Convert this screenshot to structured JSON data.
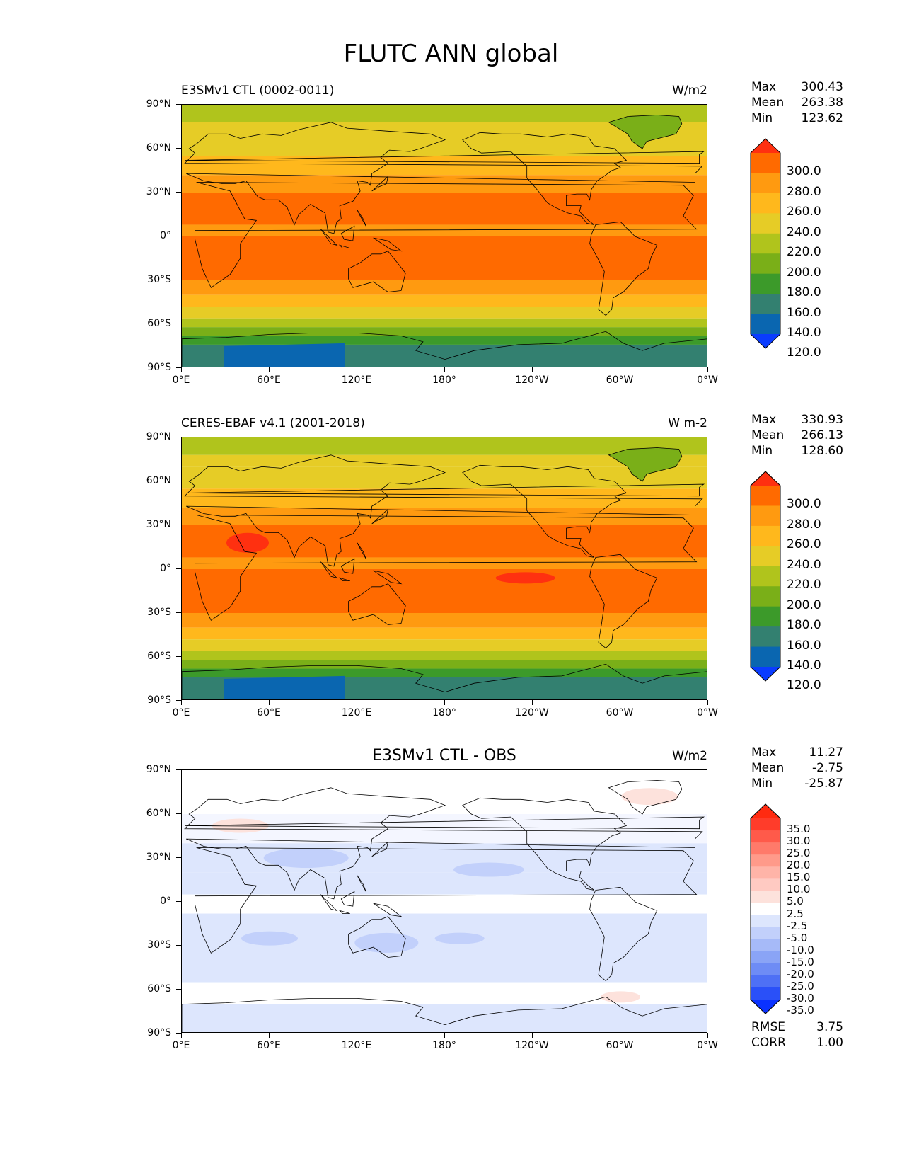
{
  "figure_title": "FLUTC ANN global",
  "x_ticks": [
    "0°E",
    "60°E",
    "120°E",
    "180°",
    "120°W",
    "60°W",
    "0°W"
  ],
  "y_ticks": [
    "90°N",
    "60°N",
    "30°N",
    "0°",
    "30°S",
    "60°S",
    "90°S"
  ],
  "panels": [
    {
      "title": "E3SMv1 CTL (0002-0011)",
      "units": "W/m2",
      "stats": {
        "max_label": "Max",
        "max": "300.43",
        "mean_label": "Mean",
        "mean": "263.38",
        "min_label": "Min",
        "min": "123.62"
      },
      "colorbar": {
        "labels": [
          "300.0",
          "280.0",
          "260.0",
          "240.0",
          "220.0",
          "200.0",
          "180.0",
          "160.0",
          "140.0",
          "120.0"
        ],
        "colors": [
          "#ff3010",
          "#ff6a00",
          "#ff9a10",
          "#ffb81c",
          "#e6cc26",
          "#b0c41c",
          "#7aaf18",
          "#3c9a2a",
          "#338070",
          "#0a66b0",
          "#0a3cff"
        ]
      }
    },
    {
      "title": "CERES-EBAF v4.1 (2001-2018)",
      "units": "W m-2",
      "stats": {
        "max_label": "Max",
        "max": "330.93",
        "mean_label": "Mean",
        "mean": "266.13",
        "min_label": "Min",
        "min": "128.60"
      },
      "colorbar": {
        "labels": [
          "300.0",
          "280.0",
          "260.0",
          "240.0",
          "220.0",
          "200.0",
          "180.0",
          "160.0",
          "140.0",
          "120.0"
        ],
        "colors": [
          "#ff3010",
          "#ff6a00",
          "#ff9a10",
          "#ffb81c",
          "#e6cc26",
          "#b0c41c",
          "#7aaf18",
          "#3c9a2a",
          "#338070",
          "#0a66b0",
          "#0a3cff"
        ]
      }
    },
    {
      "title": "E3SMv1 CTL - OBS",
      "units": "W/m2",
      "stats": {
        "max_label": "Max",
        "max": "11.27",
        "mean_label": "Mean",
        "mean": "-2.75",
        "min_label": "Min",
        "min": "-25.87"
      },
      "colorbar": {
        "labels": [
          "35.0",
          "30.0",
          "25.0",
          "20.0",
          "15.0",
          "10.0",
          "5.0",
          "2.5",
          "-2.5",
          "-5.0",
          "-10.0",
          "-15.0",
          "-20.0",
          "-25.0",
          "-30.0",
          "-35.0"
        ],
        "colors": [
          "#ff2a10",
          "#ff3c2a",
          "#ff5a4a",
          "#ff7a6a",
          "#ff9a8a",
          "#ffb4a8",
          "#ffcac2",
          "#fde2dc",
          "#ffffff",
          "#dde6fd",
          "#c2d0fb",
          "#a6baf8",
          "#8aa4f6",
          "#6e8cf5",
          "#4e70f5",
          "#2a50f8",
          "#0a32ff"
        ]
      },
      "error_stats": {
        "rmse_label": "RMSE",
        "rmse": "3.75",
        "corr_label": "CORR",
        "corr": "1.00"
      }
    }
  ]
}
